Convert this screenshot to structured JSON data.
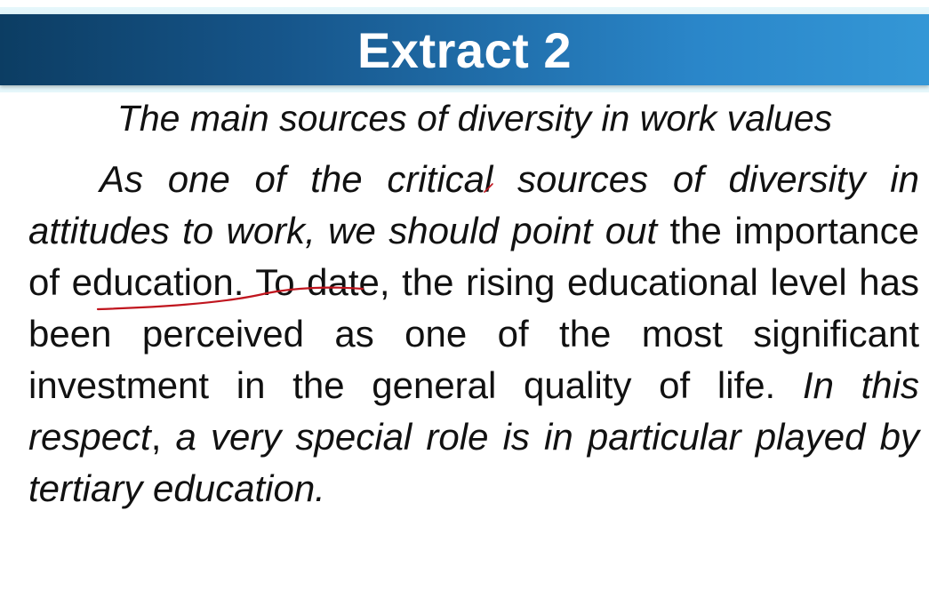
{
  "slide": {
    "title": "Extract 2",
    "subtitle": "The main sources of diversity in work values",
    "paragraph": {
      "italic_1": "As one of the critical sources of diversity in attitudes to work, we should point out",
      "normal_1": " the importance of education. To date, the rising educational level has been perceived as one of the most significant investment in the general quality of life. ",
      "italic_2": "In this respect",
      "normal_2": ", ",
      "italic_3": "a very special role is in particular played by tertiary education."
    },
    "annotation_color": "#c0151e",
    "banner_colors": [
      "#0c3d63",
      "#3497d6"
    ]
  }
}
